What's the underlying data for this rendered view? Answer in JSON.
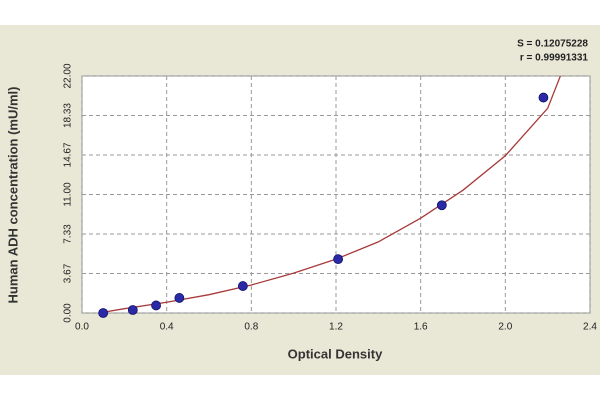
{
  "chart_data": {
    "type": "scatter",
    "x_label": "Optical Density",
    "y_label": "Human ADH concentration (mU/ml)",
    "annotations": [
      "S = 0.12075228",
      "r = 0.99991331"
    ],
    "xlim": [
      0,
      2.4
    ],
    "xticks": [
      {
        "value": 0,
        "label": "0.0"
      },
      0.4,
      0.8,
      1.2,
      1.6,
      {
        "value": 2,
        "label": "2.0"
      },
      2.4
    ],
    "ylim": [
      0,
      22
    ],
    "yticks": [
      {
        "value": 0,
        "label": "0.00"
      },
      3.67,
      7.33,
      {
        "value": 11,
        "label": "11.00"
      },
      14.67,
      18.33,
      {
        "value": 22,
        "label": "22.00"
      }
    ],
    "grid": true,
    "series": [
      {
        "style": "line",
        "color": "#a83a3a",
        "x": [
          0.08,
          0.2,
          0.4,
          0.6,
          0.8,
          1.0,
          1.2,
          1.4,
          1.6,
          1.8,
          2.0,
          2.2,
          2.26
        ],
        "values": [
          0,
          0.4,
          1.0,
          1.7,
          2.6,
          3.7,
          5.0,
          6.6,
          8.8,
          11.4,
          14.6,
          19.0,
          22.0
        ]
      },
      {
        "style": "marker",
        "color": "#2a2aa8",
        "x": [
          0.1,
          0.24,
          0.35,
          0.46,
          0.76,
          1.21,
          1.7,
          2.18
        ],
        "values": [
          0,
          0.28,
          0.7,
          1.4,
          2.5,
          5.0,
          10.0,
          20.0
        ]
      }
    ]
  }
}
